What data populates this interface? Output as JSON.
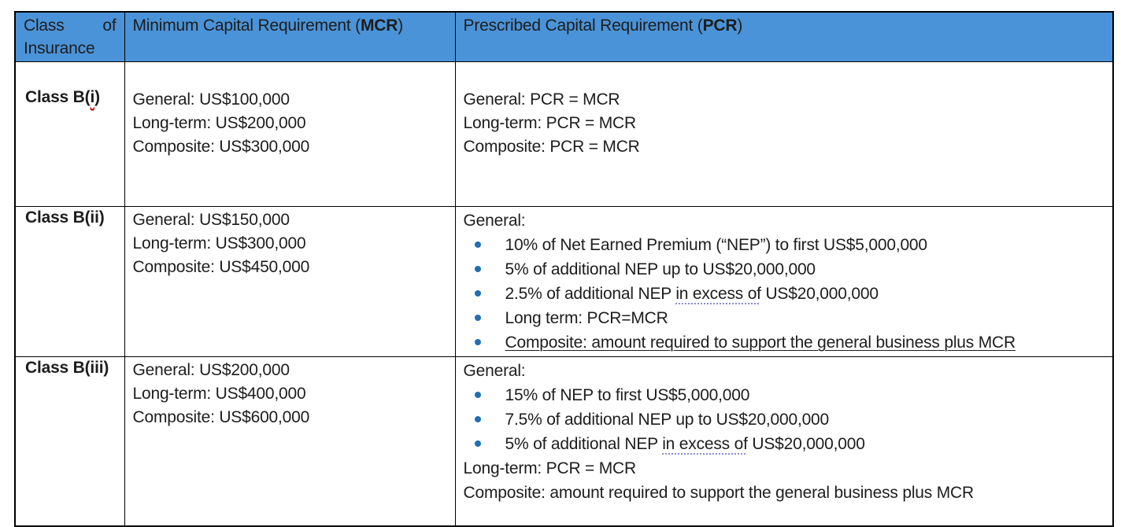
{
  "colors": {
    "header_bg": "#4b93d8",
    "bullet": "#1f6fb5",
    "underline_dotted": "#8a8ad6",
    "squiggle": "#c00000",
    "border": "#000000",
    "text": "#1d1d1d"
  },
  "table": {
    "header": {
      "col1": "Class of Insurance",
      "col2_prefix": "Minimum Capital Requirement (",
      "col2_bold": "MCR",
      "col2_suffix": ")",
      "col3_prefix": "Prescribed Capital Requirement (",
      "col3_bold": "PCR",
      "col3_suffix": ")"
    },
    "rows": [
      {
        "class_prefix": "Class B(",
        "class_misspelled": "i",
        "class_suffix": ")",
        "mcr": [
          "General: US$100,000",
          "Long-term: US$200,000",
          "Composite: US$300,000"
        ],
        "pcr_lines": [
          "General: PCR = MCR",
          "Long-term: PCR = MCR",
          "Composite: PCR = MCR"
        ]
      },
      {
        "class_label": "Class B(ii)",
        "mcr": [
          "General: US$150,000",
          "Long-term: US$300,000",
          "Composite: US$450,000"
        ],
        "pcr_intro": "General:",
        "bullets": [
          {
            "pre": "10% of Net Earned Premium (“NEP”) to first US$5,000,000"
          },
          {
            "pre": "5% of additional NEP up to US$20,000,000"
          },
          {
            "pre": "2.5% of additional NEP ",
            "dotted": "in excess of",
            "post": " US$20,000,000"
          },
          {
            "pre": "Long term: PCR=MCR"
          },
          {
            "underlined": "Composite: amount required to support the general business plus MCR"
          }
        ]
      },
      {
        "class_label": "Class B(iii)",
        "mcr": [
          "General: US$200,000",
          "Long-term: US$400,000",
          "Composite: US$600,000"
        ],
        "pcr_intro": "General:",
        "bullets": [
          {
            "pre": "15% of NEP to first US$5,000,000"
          },
          {
            "pre": "7.5% of additional NEP up to US$20,000,000"
          },
          {
            "pre": "5% of additional NEP ",
            "dotted": "in excess of",
            "post": " US$20,000,000"
          }
        ],
        "pcr_after": [
          "Long-term: PCR = MCR",
          "Composite: amount required to support the general business plus MCR"
        ]
      }
    ]
  }
}
